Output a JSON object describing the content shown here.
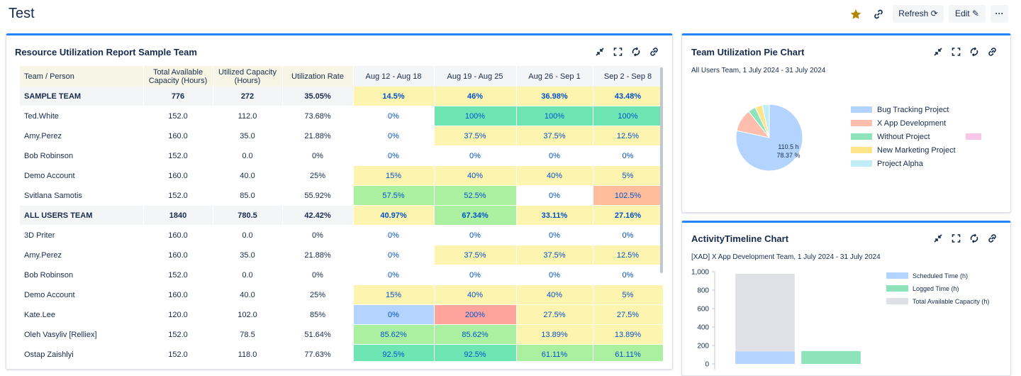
{
  "header": {
    "title": "Test",
    "buttons": [
      "Refresh",
      "Edit"
    ]
  },
  "report": {
    "title": "Resource Utilization Report Sample Team",
    "table": {
      "columns": [
        "Team / Person",
        "Total Available Capacity (Hours)",
        "Utilized Capacity (Hours)",
        "Utilization Rate",
        "Aug 12 - Aug 18",
        "Aug 19 - Aug 25",
        "Aug 26 - Sep 1",
        "Sep 2 - Sep 8"
      ],
      "rows": [
        {
          "bold": true,
          "cells": [
            "SAMPLE TEAM",
            "776",
            "272",
            "35.05%",
            "14.5%",
            "46%",
            "36.98%",
            "43.48%"
          ],
          "colors": [
            "#fdf4b0",
            "#fdf4b0",
            "#fdf4b0",
            "#fdf4b0"
          ]
        },
        {
          "bold": false,
          "cells": [
            "Ted.White",
            "152.0",
            "112.0",
            "73.68%",
            "0%",
            "100%",
            "100%",
            "100%"
          ],
          "colors": [
            "#ffffff",
            "#6ee6b4",
            "#6ee6b4",
            "#6ee6b4"
          ]
        },
        {
          "bold": false,
          "cells": [
            "Amy.Perez",
            "160.0",
            "35.0",
            "21.88%",
            "0%",
            "37.5%",
            "37.5%",
            "12.5%"
          ],
          "colors": [
            "#ffffff",
            "#fdf4b0",
            "#fdf4b0",
            "#fdf4b0"
          ]
        },
        {
          "bold": false,
          "cells": [
            "Bob Robinson",
            "152.0",
            "0.0",
            "0%",
            "0%",
            "0%",
            "0%",
            "0%"
          ],
          "colors": [
            "#ffffff",
            "#ffffff",
            "#ffffff",
            "#ffffff"
          ]
        },
        {
          "bold": false,
          "cells": [
            "Demo Account",
            "160.0",
            "40.0",
            "25%",
            "15%",
            "40%",
            "40%",
            "5%"
          ],
          "colors": [
            "#fdf4b0",
            "#fdf4b0",
            "#fdf4b0",
            "#fdf4b0"
          ]
        },
        {
          "bold": false,
          "cells": [
            "Svitlana Samotis",
            "152.0",
            "85.0",
            "55.92%",
            "57.5%",
            "52.5%",
            "0%",
            "102.5%"
          ],
          "colors": [
            "#abf0a0",
            "#abf0a0",
            "#ffffff",
            "#ffbd9b"
          ]
        },
        {
          "bold": true,
          "cells": [
            "ALL USERS TEAM",
            "1840",
            "780.5",
            "42.42%",
            "40.97%",
            "67.34%",
            "33.11%",
            "27.16%"
          ],
          "colors": [
            "#fdf4b0",
            "#abf0a0",
            "#fdf4b0",
            "#fdf4b0"
          ]
        },
        {
          "bold": false,
          "cells": [
            "3D Priter",
            "160.0",
            "0.0",
            "0%",
            "0%",
            "0%",
            "0%",
            "0%"
          ],
          "colors": [
            "#ffffff",
            "#ffffff",
            "#ffffff",
            "#ffffff"
          ]
        },
        {
          "bold": false,
          "cells": [
            "Amy.Perez",
            "160.0",
            "35.0",
            "21.88%",
            "0%",
            "37.5%",
            "37.5%",
            "12.5%"
          ],
          "colors": [
            "#ffffff",
            "#fdf4b0",
            "#fdf4b0",
            "#fdf4b0"
          ]
        },
        {
          "bold": false,
          "cells": [
            "Bob Robinson",
            "152.0",
            "0.0",
            "0%",
            "0%",
            "0%",
            "0%",
            "0%"
          ],
          "colors": [
            "#ffffff",
            "#ffffff",
            "#ffffff",
            "#ffffff"
          ]
        },
        {
          "bold": false,
          "cells": [
            "Demo Account",
            "160.0",
            "40.0",
            "25%",
            "15%",
            "40%",
            "40%",
            "5%"
          ],
          "colors": [
            "#fdf4b0",
            "#fdf4b0",
            "#fdf4b0",
            "#fdf4b0"
          ]
        },
        {
          "bold": false,
          "cells": [
            "Kate.Lee",
            "120.0",
            "102.0",
            "85%",
            "0%",
            "200%",
            "27.5%",
            "27.5%"
          ],
          "colors": [
            "#b3d4ff",
            "#ffa49c",
            "#fdf4b0",
            "#fdf4b0"
          ]
        },
        {
          "bold": false,
          "cells": [
            "Oleh Vasyliv [Relliex]",
            "152.0",
            "78.5",
            "51.64%",
            "85.62%",
            "85.62%",
            "13.89%",
            "13.89%"
          ],
          "colors": [
            "#abf0a0",
            "#abf0a0",
            "#fdf4b0",
            "#fdf4b0"
          ]
        },
        {
          "bold": false,
          "cells": [
            "Ostap Zaishlyi",
            "152.0",
            "118.0",
            "77.63%",
            "92.5%",
            "92.5%",
            "61.11%",
            "61.11%"
          ],
          "colors": [
            "#6ee6b4",
            "#6ee6b4",
            "#abf0a0",
            "#abf0a0"
          ]
        }
      ]
    }
  },
  "chart_data": [
    {
      "type": "pie",
      "title": "Team Utilization Pie Chart",
      "subtitle": "All Users Team, 1 July 2024 - 31 July 2024",
      "categories": [
        "Bug Tracking Project",
        "X App Development",
        "Without Project",
        "New Marketing Project",
        "Project Alpha"
      ],
      "values": [
        78.37,
        11,
        3.7,
        3.5,
        3.43
      ],
      "value_labels": [
        "78.37 %",
        null,
        null,
        null,
        null
      ],
      "annotations": [
        "110.5 h"
      ],
      "colors": [
        "#b3d4ff",
        "#ffbdad",
        "#8ee3bb",
        "#fde68a",
        "#c1eef6"
      ]
    },
    {
      "type": "bar",
      "title": "ActivityTimeline Chart",
      "subtitle": "[XAD] X App Development Team, 1 July 2024 - 31 July 2024",
      "categories": [
        null,
        null
      ],
      "series": [
        {
          "name": "Scheduled Time (h)",
          "color": "#b3d4ff",
          "values": [
            135,
            null
          ]
        },
        {
          "name": "Logged Time (h)",
          "color": "#8ee3bb",
          "values": [
            null,
            140
          ]
        },
        {
          "name": "Total Available Capacity (h)",
          "color": "#dfe1e6",
          "values": [
            978,
            null
          ]
        }
      ],
      "ylim": [
        0,
        1000
      ],
      "yticks": [
        0,
        200,
        400,
        600,
        800,
        {
          "value": 1000,
          "label": "1,000"
        }
      ]
    }
  ]
}
